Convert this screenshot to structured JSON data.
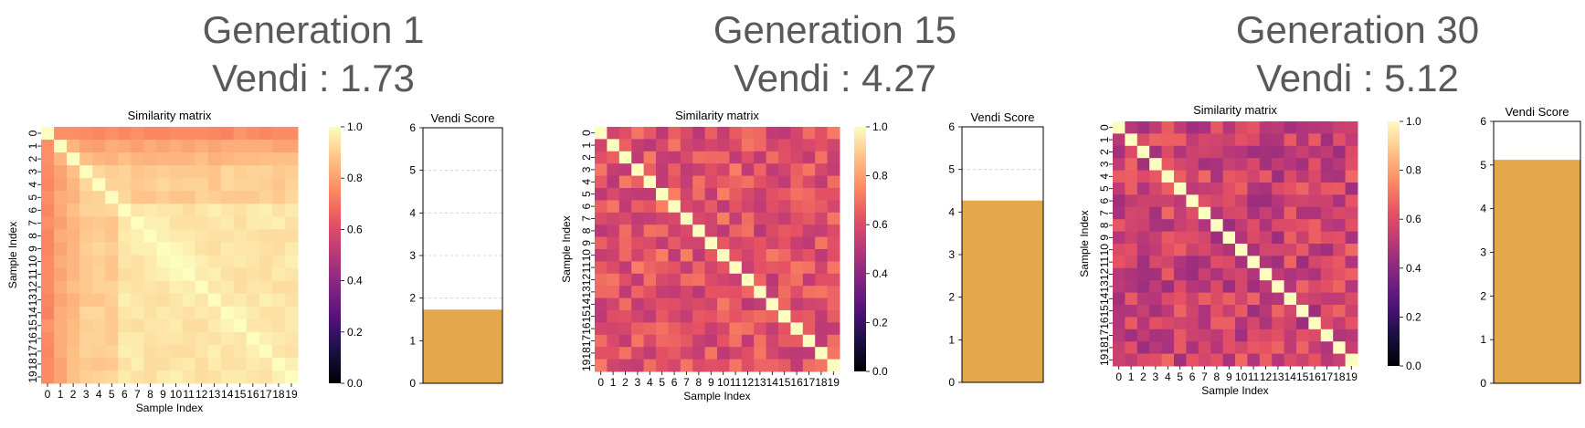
{
  "panels": [
    {
      "generation_title": "Generation 1",
      "vendi_title": "Vendi : 1.73"
    },
    {
      "generation_title": "Generation 15",
      "vendi_title": "Vendi : 4.27"
    },
    {
      "generation_title": "Generation 30",
      "vendi_title": "Vendi : 5.12"
    }
  ],
  "colors": {
    "title_text": "#595959",
    "bar": "#E3A84C",
    "axis": "#000000",
    "gridline": "#cccccc"
  },
  "chart_data": [
    {
      "type": "heatmap",
      "title": "Similarity matrix",
      "xlabel": "Sample Index",
      "ylabel": "Sample Index",
      "x_ticks": [
        "0",
        "1",
        "2",
        "3",
        "4",
        "5",
        "6",
        "7",
        "8",
        "9",
        "10",
        "11",
        "12",
        "13",
        "14",
        "15",
        "16",
        "17",
        "18",
        "19"
      ],
      "y_ticks": [
        "0",
        "1",
        "2",
        "3",
        "4",
        "5",
        "6",
        "7",
        "8",
        "9",
        "10",
        "11",
        "12",
        "13",
        "14",
        "15",
        "16",
        "17",
        "18",
        "19"
      ],
      "colorbar_ticks": [
        "0.0",
        "0.2",
        "0.4",
        "0.6",
        "0.8",
        "1.0"
      ],
      "colorbar_range": [
        0,
        1
      ],
      "colormap": "magma",
      "pattern": "high",
      "values": []
    },
    {
      "type": "bar",
      "title": "Vendi Score",
      "value": 1.73,
      "ylim": [
        0,
        6
      ],
      "y_ticks": [
        "0",
        "1",
        "2",
        "3",
        "4",
        "5",
        "6"
      ],
      "grid": true
    },
    {
      "type": "heatmap",
      "title": "Similarity matrix",
      "xlabel": "Sample Index",
      "ylabel": "Sample Index",
      "x_ticks": [
        "0",
        "1",
        "2",
        "3",
        "4",
        "5",
        "6",
        "7",
        "8",
        "9",
        "10",
        "11",
        "12",
        "13",
        "14",
        "15",
        "16",
        "17",
        "18",
        "19"
      ],
      "y_ticks": [
        "0",
        "1",
        "2",
        "3",
        "4",
        "5",
        "6",
        "7",
        "8",
        "9",
        "10",
        "11",
        "12",
        "13",
        "14",
        "15",
        "16",
        "17",
        "18",
        "19"
      ],
      "colorbar_ticks": [
        "0.0",
        "0.2",
        "0.4",
        "0.6",
        "0.8",
        "1.0"
      ],
      "colorbar_range": [
        0,
        1
      ],
      "colormap": "magma",
      "pattern": "mid",
      "values": []
    },
    {
      "type": "bar",
      "title": "Vendi Score",
      "value": 4.27,
      "ylim": [
        0,
        6
      ],
      "y_ticks": [
        "0",
        "1",
        "2",
        "3",
        "4",
        "5",
        "6"
      ],
      "grid": true
    },
    {
      "type": "heatmap",
      "title": "Similarity matrix",
      "xlabel": "Sample Index",
      "ylabel": "Sample Index",
      "x_ticks": [
        "0",
        "1",
        "2",
        "3",
        "4",
        "5",
        "6",
        "7",
        "8",
        "9",
        "10",
        "11",
        "12",
        "13",
        "14",
        "15",
        "16",
        "17",
        "18",
        "19"
      ],
      "y_ticks": [
        "0",
        "1",
        "2",
        "3",
        "4",
        "5",
        "6",
        "7",
        "8",
        "9",
        "10",
        "11",
        "12",
        "13",
        "14",
        "15",
        "16",
        "17",
        "18",
        "19"
      ],
      "colorbar_ticks": [
        "0.0",
        "0.2",
        "0.4",
        "0.6",
        "0.8",
        "1.0"
      ],
      "colorbar_range": [
        0,
        1
      ],
      "colormap": "magma",
      "pattern": "low",
      "values": []
    },
    {
      "type": "bar",
      "title": "Vendi Score",
      "value": 5.12,
      "ylim": [
        0,
        6
      ],
      "y_ticks": [
        "0",
        "1",
        "2",
        "3",
        "4",
        "5",
        "6"
      ],
      "grid": true
    }
  ]
}
